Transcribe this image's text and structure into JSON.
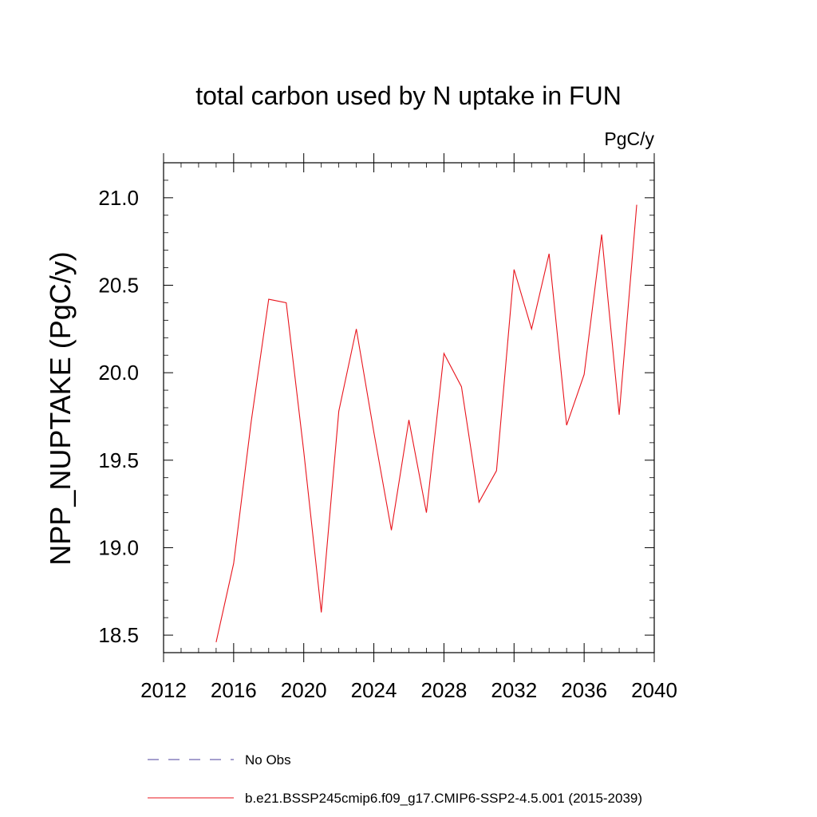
{
  "chart_data": {
    "type": "line",
    "title": "total carbon used by N uptake in FUN",
    "units": "PgC/y",
    "xlabel": "",
    "ylabel": "NPP_NUPTAKE  (PgC/y)",
    "xlim": [
      2012,
      2040
    ],
    "ylim": [
      18.4,
      21.2
    ],
    "x_ticks": [
      "2012",
      "2016",
      "2020",
      "2024",
      "2028",
      "2032",
      "2036",
      "2040"
    ],
    "y_ticks": [
      "18.5",
      "19.0",
      "19.5",
      "20.0",
      "20.5",
      "21.0"
    ],
    "grid": false,
    "legend_position": "bottom",
    "series": [
      {
        "name": "b.e21.BSSP245cmip6.f09_g17.CMIP6-SSP2-4.5.001 (2015-2039)",
        "color": "#e8141c",
        "dash": "solid",
        "x": [
          2015,
          2016,
          2017,
          2018,
          2019,
          2020,
          2021,
          2022,
          2023,
          2024,
          2025,
          2026,
          2027,
          2028,
          2029,
          2030,
          2031,
          2032,
          2033,
          2034,
          2035,
          2036,
          2037,
          2038,
          2039
        ],
        "values": [
          18.46,
          18.91,
          19.72,
          20.42,
          20.4,
          19.55,
          18.63,
          19.78,
          20.25,
          19.66,
          19.1,
          19.73,
          19.2,
          20.11,
          19.92,
          19.26,
          19.44,
          20.59,
          20.25,
          20.68,
          19.7,
          19.99,
          20.79,
          19.76,
          20.96
        ]
      }
    ],
    "legend": [
      {
        "label": "No Obs",
        "color": "#4b3f9e",
        "dash": "dashed"
      },
      {
        "label": "b.e21.BSSP245cmip6.f09_g17.CMIP6-SSP2-4.5.001 (2015-2039)",
        "color": "#e8141c",
        "dash": "solid"
      }
    ]
  }
}
